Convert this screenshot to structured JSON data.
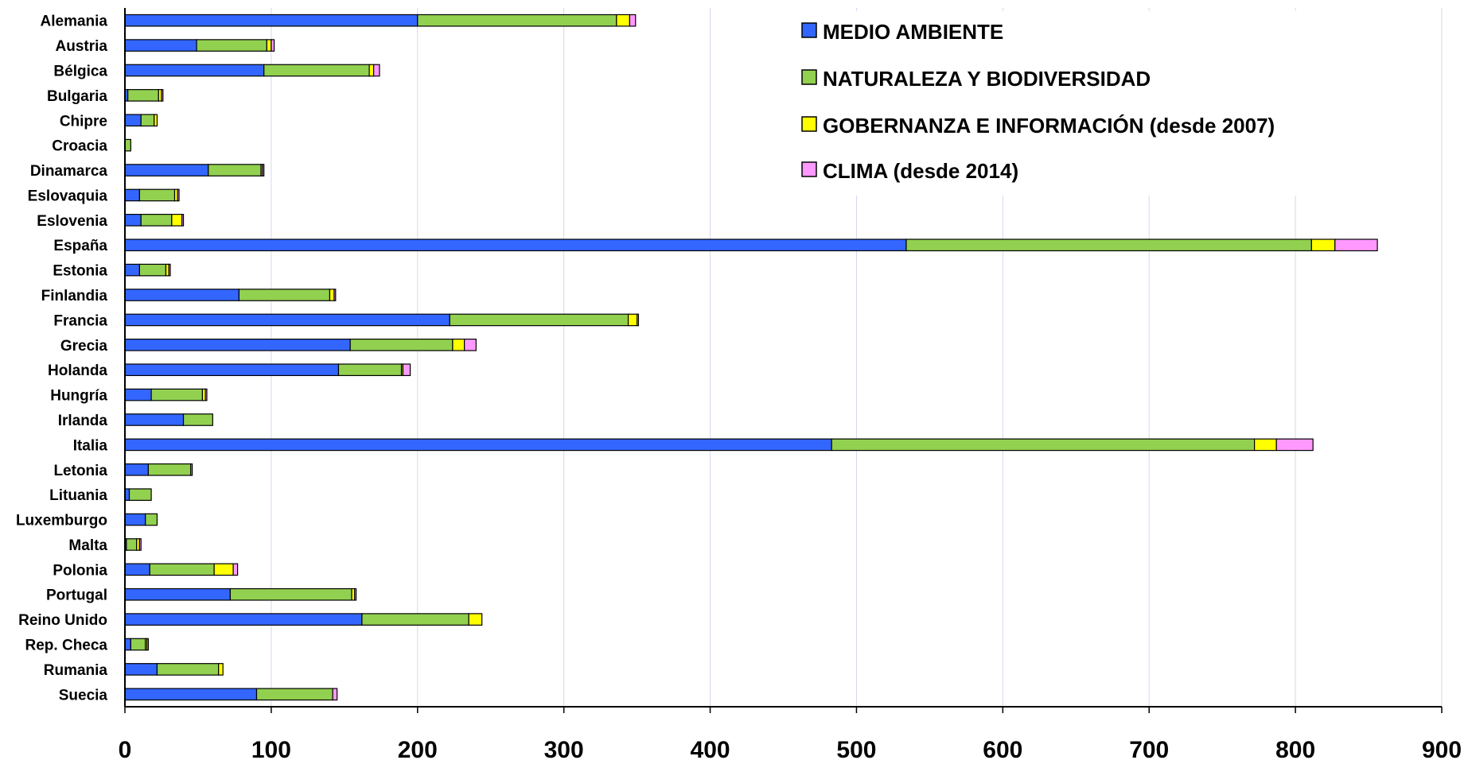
{
  "chart_data": {
    "type": "bar",
    "orientation": "horizontal",
    "stacked": true,
    "categories": [
      "Alemania",
      "Austria",
      "Bélgica",
      "Bulgaria",
      "Chipre",
      "Croacia",
      "Dinamarca",
      "Eslovaquia",
      "Eslovenia",
      "España",
      "Estonia",
      "Finlandia",
      "Francia",
      "Grecia",
      "Holanda",
      "Hungría",
      "Irlanda",
      "Italia",
      "Letonia",
      "Lituania",
      "Luxemburgo",
      "Malta",
      "Polonia",
      "Portugal",
      "Reino Unido",
      "Rep. Checa",
      "Rumania",
      "Suecia"
    ],
    "series": [
      {
        "name": "MEDIO AMBIENTE",
        "color": "#3366ff",
        "values": [
          200,
          49,
          95,
          2,
          11,
          0,
          57,
          10,
          11,
          534,
          10,
          78,
          222,
          154,
          146,
          18,
          40,
          483,
          16,
          3,
          14,
          1,
          17,
          72,
          162,
          4,
          22,
          90
        ]
      },
      {
        "name": "NATURALEZA Y BIODIVERSIDAD",
        "color": "#92d050",
        "values": [
          136,
          48,
          72,
          21,
          9,
          4,
          36,
          24,
          21,
          277,
          18,
          62,
          122,
          70,
          43,
          35,
          20,
          289,
          29,
          15,
          8,
          7,
          44,
          83,
          73,
          10,
          42,
          52
        ]
      },
      {
        "name": "GOBERNANZA E INFORMACIÓN (desde 2007)",
        "color": "#ffff00",
        "values": [
          9,
          3,
          3,
          2,
          2,
          0,
          1,
          2,
          7,
          16,
          2,
          3,
          6,
          8,
          1,
          2,
          0,
          15,
          0,
          0,
          0,
          2,
          13,
          2,
          9,
          1,
          3,
          0
        ]
      },
      {
        "name": "CLIMA (desde 2014)",
        "color": "#ff99ff",
        "values": [
          4,
          2,
          4,
          1,
          0,
          0,
          1,
          1,
          1,
          29,
          1,
          1,
          1,
          8,
          5,
          1,
          0,
          25,
          1,
          0,
          0,
          1,
          3,
          1,
          0,
          1,
          0,
          3
        ]
      }
    ],
    "xlim": [
      0,
      900
    ],
    "xticks": [
      "0",
      "100",
      "200",
      "300",
      "400",
      "500",
      "600",
      "700",
      "800",
      "900"
    ],
    "grid": "vertical",
    "legend_position": "top-right"
  }
}
